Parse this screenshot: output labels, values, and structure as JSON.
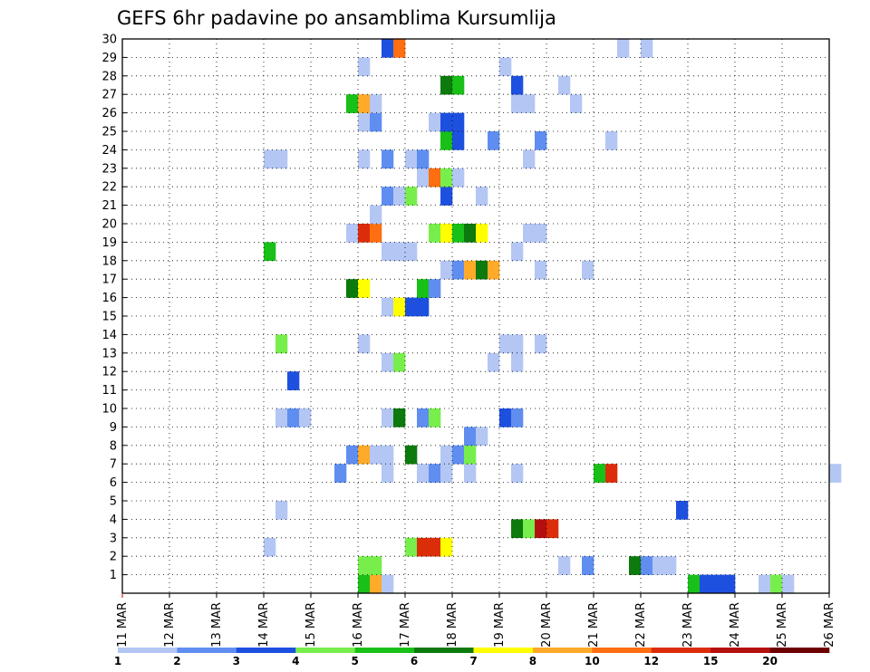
{
  "chart_data": {
    "type": "heatmap",
    "title": "GEFS 6hr padavine po ansamblima Kursumlija",
    "xlabel": "",
    "ylabel": "",
    "x_ticks": [
      "11 MAR",
      "12 MAR",
      "13 MAR",
      "14 MAR",
      "15 MAR",
      "16 MAR",
      "17 MAR",
      "18 MAR",
      "19 MAR",
      "20 MAR",
      "21 MAR",
      "22 MAR",
      "23 MAR",
      "24 MAR",
      "25 MAR",
      "26 MAR"
    ],
    "x_range": [
      "11 MAR 00h",
      "26 MAR 00h"
    ],
    "x_step_hours": 6,
    "y_ticks": [
      1,
      2,
      3,
      4,
      5,
      6,
      7,
      8,
      9,
      10,
      11,
      12,
      13,
      14,
      15,
      16,
      17,
      18,
      19,
      20,
      21,
      22,
      23,
      24,
      25,
      26,
      27,
      28,
      29,
      30
    ],
    "y_range": [
      0,
      30
    ],
    "grid": true,
    "legend": {
      "placement": "bottom",
      "labels": [
        "1",
        "2",
        "3",
        "4",
        "5",
        "6",
        "7",
        "8",
        "10",
        "12",
        "15",
        "20"
      ],
      "colors": [
        "#b4c6f4",
        "#5f8ef0",
        "#1e50e0",
        "#78ee4c",
        "#18c018",
        "#0c7a0c",
        "#ffff00",
        "#ffaa28",
        "#ff6e10",
        "#dc2d0a",
        "#b40f0f",
        "#6e0000"
      ]
    },
    "cells": [
      [
        20,
        0,
        4
      ],
      [
        21,
        0,
        7
      ],
      [
        22,
        0,
        0
      ],
      [
        48,
        0,
        4
      ],
      [
        49,
        0,
        2
      ],
      [
        50,
        0,
        2
      ],
      [
        51,
        0,
        2
      ],
      [
        54,
        0,
        0
      ],
      [
        55,
        0,
        3
      ],
      [
        56,
        0,
        0
      ],
      [
        20,
        1,
        3
      ],
      [
        21,
        1,
        3
      ],
      [
        37,
        1,
        0
      ],
      [
        39,
        1,
        1
      ],
      [
        43,
        1,
        5
      ],
      [
        44,
        1,
        1
      ],
      [
        45,
        1,
        0
      ],
      [
        46,
        1,
        0
      ],
      [
        68,
        1,
        0
      ],
      [
        12,
        2,
        0
      ],
      [
        24,
        2,
        3
      ],
      [
        25,
        2,
        9
      ],
      [
        26,
        2,
        9
      ],
      [
        27,
        2,
        6
      ],
      [
        33,
        3,
        5
      ],
      [
        34,
        3,
        3
      ],
      [
        35,
        3,
        10
      ],
      [
        36,
        3,
        9
      ],
      [
        13,
        4,
        0
      ],
      [
        47,
        4,
        2
      ],
      [
        69,
        4,
        6
      ],
      [
        70,
        4,
        0
      ],
      [
        72,
        5,
        4
      ],
      [
        73,
        5,
        6
      ],
      [
        74,
        5,
        3
      ],
      [
        18,
        6,
        1
      ],
      [
        22,
        6,
        0
      ],
      [
        25,
        6,
        0
      ],
      [
        26,
        6,
        1
      ],
      [
        27,
        6,
        0
      ],
      [
        29,
        6,
        0
      ],
      [
        33,
        6,
        0
      ],
      [
        40,
        6,
        4
      ],
      [
        41,
        6,
        9
      ],
      [
        60,
        6,
        0
      ],
      [
        19,
        7,
        1
      ],
      [
        20,
        7,
        7
      ],
      [
        21,
        7,
        0
      ],
      [
        22,
        7,
        0
      ],
      [
        24,
        7,
        5
      ],
      [
        27,
        7,
        0
      ],
      [
        28,
        7,
        1
      ],
      [
        29,
        7,
        3
      ],
      [
        71,
        7,
        0
      ],
      [
        72,
        7,
        5
      ],
      [
        73,
        7,
        2
      ],
      [
        29,
        8,
        1
      ],
      [
        30,
        8,
        0
      ],
      [
        66,
        8,
        2
      ],
      [
        67,
        8,
        10
      ],
      [
        68,
        8,
        5
      ],
      [
        69,
        8,
        4
      ],
      [
        70,
        8,
        3
      ],
      [
        71,
        8,
        2
      ],
      [
        72,
        8,
        0
      ],
      [
        73,
        8,
        0
      ],
      [
        76,
        8,
        0
      ],
      [
        77,
        8,
        0
      ],
      [
        13,
        9,
        0
      ],
      [
        14,
        9,
        1
      ],
      [
        15,
        9,
        0
      ],
      [
        22,
        9,
        0
      ],
      [
        23,
        9,
        5
      ],
      [
        25,
        9,
        1
      ],
      [
        26,
        9,
        3
      ],
      [
        32,
        9,
        2
      ],
      [
        33,
        9,
        1
      ],
      [
        73,
        9,
        4
      ],
      [
        66,
        10,
        0
      ],
      [
        67,
        10,
        1
      ],
      [
        68,
        10,
        0
      ],
      [
        69,
        10,
        0
      ],
      [
        71,
        10,
        4
      ],
      [
        72,
        10,
        0
      ],
      [
        73,
        10,
        1
      ],
      [
        74,
        10,
        1
      ],
      [
        75,
        10,
        0
      ],
      [
        77,
        10,
        0
      ],
      [
        78,
        10,
        0
      ],
      [
        84,
        10,
        5
      ],
      [
        14,
        11,
        2
      ],
      [
        74,
        11,
        0
      ],
      [
        75,
        11,
        0
      ],
      [
        77,
        11,
        0
      ],
      [
        22,
        12,
        0
      ],
      [
        23,
        12,
        3
      ],
      [
        31,
        12,
        0
      ],
      [
        33,
        12,
        0
      ],
      [
        66,
        12,
        2
      ],
      [
        67,
        12,
        0
      ],
      [
        73,
        12,
        1
      ],
      [
        74,
        12,
        0
      ],
      [
        78,
        12,
        0
      ],
      [
        13,
        13,
        3
      ],
      [
        20,
        13,
        0
      ],
      [
        32,
        13,
        0
      ],
      [
        33,
        13,
        0
      ],
      [
        35,
        13,
        0
      ],
      [
        84,
        13,
        1
      ],
      [
        85,
        13,
        1
      ],
      [
        83,
        14,
        0
      ],
      [
        22,
        15,
        0
      ],
      [
        23,
        15,
        6
      ],
      [
        24,
        15,
        2
      ],
      [
        25,
        15,
        2
      ],
      [
        73,
        15,
        0
      ],
      [
        80,
        15,
        0
      ],
      [
        81,
        15,
        0
      ],
      [
        19,
        16,
        5
      ],
      [
        20,
        16,
        6
      ],
      [
        25,
        16,
        4
      ],
      [
        26,
        16,
        1
      ],
      [
        74,
        16,
        1
      ],
      [
        79,
        16,
        1
      ],
      [
        80,
        16,
        0
      ],
      [
        81,
        16,
        0
      ],
      [
        27,
        17,
        0
      ],
      [
        28,
        17,
        1
      ],
      [
        29,
        17,
        7
      ],
      [
        30,
        17,
        5
      ],
      [
        31,
        17,
        7
      ],
      [
        35,
        17,
        0
      ],
      [
        39,
        17,
        0
      ],
      [
        72,
        17,
        0
      ],
      [
        73,
        17,
        0
      ],
      [
        83,
        17,
        3
      ],
      [
        84,
        17,
        6
      ],
      [
        85,
        17,
        0
      ],
      [
        12,
        18,
        4
      ],
      [
        22,
        18,
        0
      ],
      [
        23,
        18,
        0
      ],
      [
        24,
        18,
        0
      ],
      [
        33,
        18,
        0
      ],
      [
        19,
        19,
        0
      ],
      [
        20,
        19,
        9
      ],
      [
        21,
        19,
        8
      ],
      [
        26,
        19,
        3
      ],
      [
        27,
        19,
        6
      ],
      [
        28,
        19,
        4
      ],
      [
        29,
        19,
        5
      ],
      [
        30,
        19,
        6
      ],
      [
        34,
        19,
        0
      ],
      [
        35,
        19,
        0
      ],
      [
        79,
        19,
        9
      ],
      [
        80,
        19,
        11
      ],
      [
        81,
        19,
        7
      ],
      [
        82,
        19,
        10
      ],
      [
        83,
        19,
        0
      ],
      [
        84,
        19,
        0
      ],
      [
        21,
        20,
        0
      ],
      [
        71,
        20,
        0
      ],
      [
        74,
        20,
        0
      ],
      [
        83,
        20,
        0
      ],
      [
        84,
        20,
        0
      ],
      [
        22,
        21,
        1
      ],
      [
        23,
        21,
        0
      ],
      [
        24,
        21,
        3
      ],
      [
        27,
        21,
        2
      ],
      [
        30,
        21,
        0
      ],
      [
        25,
        22,
        0
      ],
      [
        26,
        22,
        8
      ],
      [
        27,
        22,
        3
      ],
      [
        28,
        22,
        0
      ],
      [
        12,
        23,
        0
      ],
      [
        13,
        23,
        0
      ],
      [
        20,
        23,
        0
      ],
      [
        22,
        23,
        1
      ],
      [
        24,
        23,
        0
      ],
      [
        25,
        23,
        1
      ],
      [
        34,
        23,
        0
      ],
      [
        76,
        23,
        0
      ],
      [
        77,
        23,
        4
      ],
      [
        78,
        23,
        1
      ],
      [
        79,
        23,
        0
      ],
      [
        27,
        24,
        4
      ],
      [
        28,
        24,
        2
      ],
      [
        31,
        24,
        1
      ],
      [
        35,
        24,
        1
      ],
      [
        41,
        24,
        0
      ],
      [
        72,
        24,
        2
      ],
      [
        73,
        24,
        0
      ],
      [
        77,
        24,
        0
      ],
      [
        20,
        25,
        0
      ],
      [
        21,
        25,
        1
      ],
      [
        26,
        25,
        0
      ],
      [
        27,
        25,
        2
      ],
      [
        28,
        25,
        2
      ],
      [
        81,
        25,
        0
      ],
      [
        82,
        25,
        3
      ],
      [
        83,
        25,
        1
      ],
      [
        19,
        26,
        4
      ],
      [
        20,
        26,
        7
      ],
      [
        21,
        26,
        0
      ],
      [
        33,
        26,
        0
      ],
      [
        34,
        26,
        0
      ],
      [
        38,
        26,
        0
      ],
      [
        83,
        26,
        2
      ],
      [
        85,
        26,
        0
      ],
      [
        27,
        27,
        5
      ],
      [
        28,
        27,
        4
      ],
      [
        33,
        27,
        2
      ],
      [
        37,
        27,
        0
      ],
      [
        68,
        27,
        4
      ],
      [
        71,
        27,
        0
      ],
      [
        73,
        27,
        0
      ],
      [
        74,
        27,
        0
      ],
      [
        75,
        27,
        0
      ],
      [
        82,
        27,
        0
      ],
      [
        83,
        27,
        0
      ],
      [
        84,
        27,
        4
      ],
      [
        85,
        27,
        1
      ],
      [
        20,
        28,
        0
      ],
      [
        32,
        28,
        0
      ],
      [
        70,
        28,
        0
      ],
      [
        76,
        28,
        1
      ],
      [
        77,
        28,
        1
      ],
      [
        22,
        29,
        2
      ],
      [
        23,
        29,
        8
      ],
      [
        42,
        29,
        0
      ],
      [
        44,
        29,
        0
      ]
    ]
  }
}
